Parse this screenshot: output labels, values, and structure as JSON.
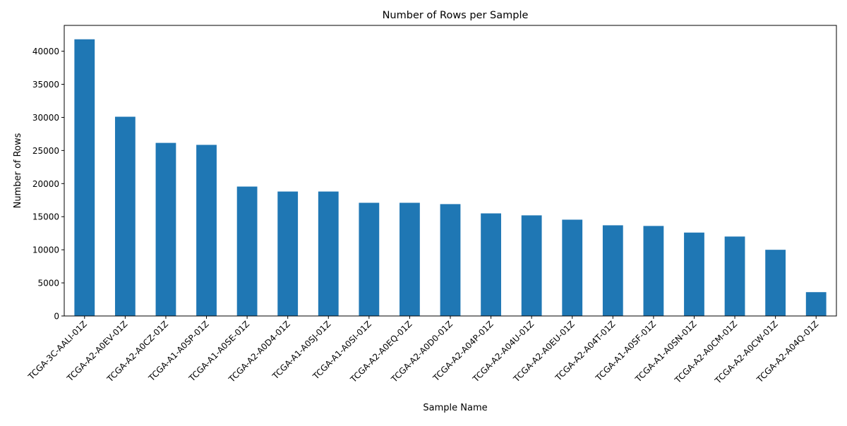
{
  "chart_data": {
    "type": "bar",
    "title": "Number of Rows per Sample",
    "xlabel": "Sample Name",
    "ylabel": "Number of Rows",
    "categories": [
      "TCGA-3C-AALI-01Z",
      "TCGA-A2-A0EV-01Z",
      "TCGA-A2-A0CZ-01Z",
      "TCGA-A1-A0SP-01Z",
      "TCGA-A1-A0SE-01Z",
      "TCGA-A2-A0D4-01Z",
      "TCGA-A1-A0SJ-01Z",
      "TCGA-A1-A0SI-01Z",
      "TCGA-A2-A0EQ-01Z",
      "TCGA-A2-A0D0-01Z",
      "TCGA-A2-A04P-01Z",
      "TCGA-A2-A04U-01Z",
      "TCGA-A2-A0EU-01Z",
      "TCGA-A2-A04T-01Z",
      "TCGA-A1-A0SF-01Z",
      "TCGA-A1-A0SN-01Z",
      "TCGA-A2-A0CM-01Z",
      "TCGA-A2-A0CW-01Z",
      "TCGA-A2-A04Q-01Z"
    ],
    "values": [
      41800,
      30100,
      26150,
      25850,
      19550,
      18800,
      18800,
      17100,
      17100,
      16900,
      15500,
      15200,
      14550,
      13700,
      13600,
      12600,
      12000,
      10000,
      3600
    ],
    "ylim": [
      0,
      43900
    ],
    "yticks": [
      0,
      5000,
      10000,
      15000,
      20000,
      25000,
      30000,
      35000,
      40000
    ],
    "grid": false,
    "bar_color": "#1f77b4"
  }
}
